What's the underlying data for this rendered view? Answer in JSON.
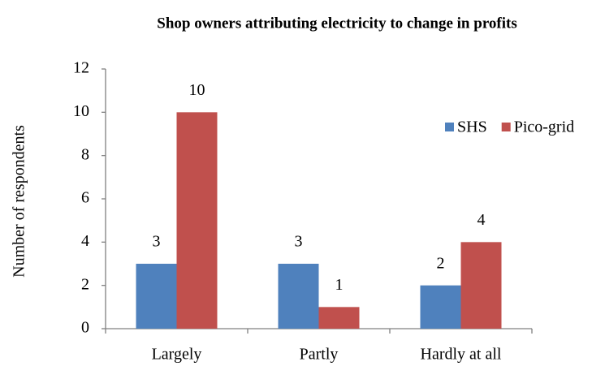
{
  "chart_data": {
    "type": "bar",
    "title": "Shop owners attributing  electricity to change in profits",
    "y_label": "Number of respondents",
    "categories": [
      "Largely",
      "Partly",
      "Hardly at all"
    ],
    "series": [
      {
        "name": "SHS",
        "color": "#4f81bd",
        "values": [
          3,
          3,
          2
        ]
      },
      {
        "name": "Pico-grid",
        "color": "#c0504d",
        "values": [
          10,
          1,
          4
        ]
      }
    ],
    "ylim": [
      0,
      12
    ],
    "yticks": [
      0,
      2,
      4,
      6,
      8,
      10,
      12
    ],
    "grid": false,
    "legend": "upper right",
    "data_labels": true
  }
}
